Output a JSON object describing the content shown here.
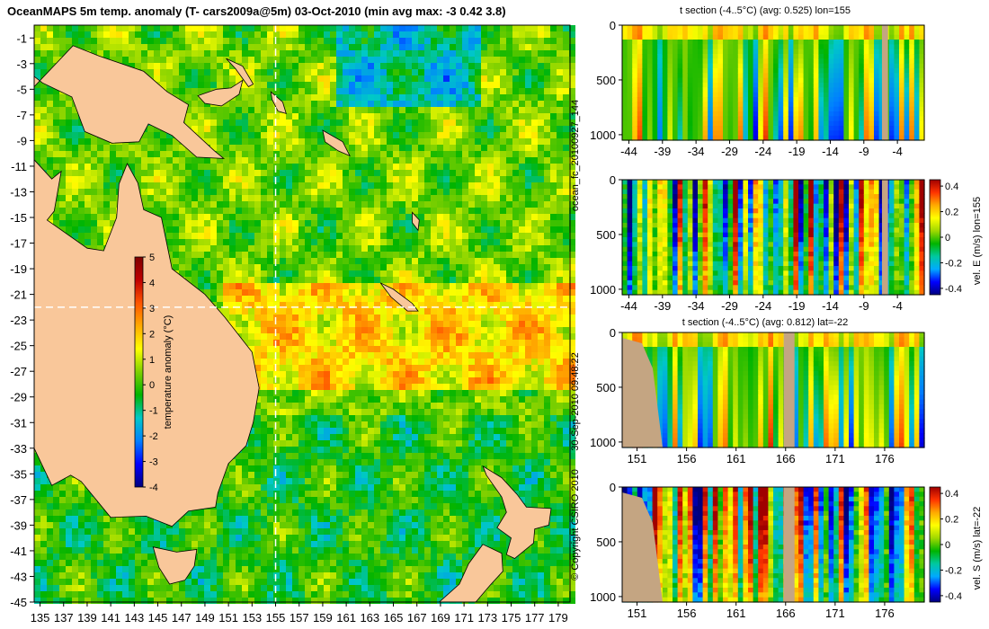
{
  "page": {
    "side_label_top": "ocean_fc_20100927_144",
    "side_label_bottom": "30-Sep-2010 09:48:22",
    "copyright": "© Copyright CSIRO 2010"
  },
  "colors": {
    "land_map": "#f9c79a",
    "land_section": "#c4a582",
    "line": "#ffffff",
    "frame": "#000000",
    "scale_temp": [
      "#00007f",
      "#0000ff",
      "#007fff",
      "#00c8c8",
      "#00b400",
      "#7fd000",
      "#ffff00",
      "#ffaa00",
      "#ff5500",
      "#c00000",
      "#7f0000"
    ],
    "scale_vel": [
      "#00007f",
      "#0000ff",
      "#00aaff",
      "#00c8a0",
      "#00b400",
      "#a0d800",
      "#ffff00",
      "#ffaa00",
      "#ff3300",
      "#a00000"
    ]
  },
  "chart_data": [
    {
      "id": "map",
      "type": "heatmap",
      "title": "OceanMAPS 5m temp. anomaly (T- cars2009a@5m) 03-Oct-2010 (min avg max: -3 0.42 3.8)",
      "x_ticks": [
        "135",
        "137",
        "139",
        "141",
        "143",
        "145",
        "147",
        "149",
        "151",
        "153",
        "155",
        "157",
        "159",
        "161",
        "163",
        "165",
        "167",
        "169",
        "171",
        "173",
        "175",
        "177",
        "179"
      ],
      "y_ticks": [
        "-1",
        "-3",
        "-5",
        "-7",
        "-9",
        "-11",
        "-13",
        "-15",
        "-17",
        "-19",
        "-21",
        "-23",
        "-25",
        "-27",
        "-29",
        "-31",
        "-33",
        "-35",
        "-37",
        "-39",
        "-41",
        "-43",
        "-45"
      ],
      "xlim": [
        134.5,
        180
      ],
      "ylim": [
        -45,
        0
      ],
      "section_lines": {
        "lon": 155,
        "lat": -22
      },
      "stats": {
        "min": -3,
        "avg": 0.42,
        "max": 3.8
      },
      "colorbar": {
        "label": "temperature anomaly (°C)",
        "ticks": [
          "5",
          "4",
          "3",
          "2",
          "1",
          "0",
          "-1",
          "-2",
          "-3",
          "-4"
        ],
        "range": [
          -4,
          5
        ]
      }
    },
    {
      "id": "t-lon",
      "type": "heatmap",
      "title": "t section (-4..5°C) (avg: 0.525) lon=155",
      "x_ticks": [
        "-44",
        "-39",
        "-34",
        "-29",
        "-24",
        "-19",
        "-14",
        "-9",
        "-4"
      ],
      "y_ticks": [
        "0",
        "500",
        "1000"
      ],
      "xlim": [
        -45,
        0
      ],
      "ylim": [
        1050,
        0
      ],
      "avg": 0.525,
      "land_x": [
        -6.3,
        -5.4
      ]
    },
    {
      "id": "u-lon",
      "type": "heatmap",
      "title": "",
      "x_ticks": [
        "-44",
        "-39",
        "-34",
        "-29",
        "-24",
        "-19",
        "-14",
        "-9",
        "-4"
      ],
      "y_ticks": [
        "0",
        "500",
        "1000"
      ],
      "xlim": [
        -45,
        0
      ],
      "ylim": [
        1050,
        0
      ],
      "land_x": [
        -6.3,
        -5.4
      ],
      "colorbar": {
        "label": "vel. E (m/s) lon=155",
        "ticks": [
          "0.4",
          "0.2",
          "0",
          "-0.2",
          "-0.4"
        ],
        "range": [
          -0.45,
          0.45
        ]
      }
    },
    {
      "id": "t-lat",
      "type": "heatmap",
      "title": "t section (-4..5°C) (avg: 0.812) lat=-22",
      "x_ticks": [
        "151",
        "156",
        "161",
        "166",
        "171",
        "176"
      ],
      "y_ticks": [
        "0",
        "500",
        "1000"
      ],
      "xlim": [
        149.5,
        180
      ],
      "ylim": [
        1050,
        0
      ],
      "avg": 0.812,
      "land_x": [
        165.8,
        166.9
      ]
    },
    {
      "id": "v-lat",
      "type": "heatmap",
      "title": "",
      "x_ticks": [
        "151",
        "156",
        "161",
        "166",
        "171",
        "176"
      ],
      "y_ticks": [
        "0",
        "500",
        "1000"
      ],
      "xlim": [
        149.5,
        180
      ],
      "ylim": [
        1050,
        0
      ],
      "land_x": [
        165.8,
        166.9
      ],
      "colorbar": {
        "label": "vel. S (m/s) lat=-22",
        "ticks": [
          "0.4",
          "0.2",
          "0",
          "-0.2",
          "-0.4"
        ],
        "range": [
          -0.45,
          0.45
        ]
      }
    }
  ]
}
